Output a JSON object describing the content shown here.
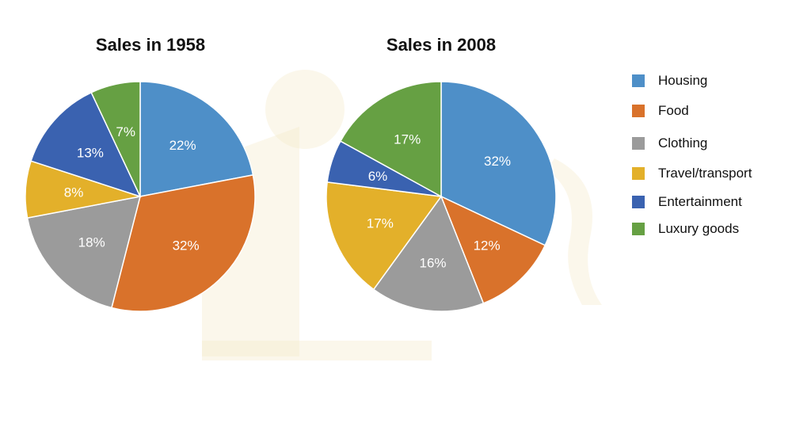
{
  "chart_data": [
    {
      "type": "pie",
      "title": "Sales in 1958",
      "categories": [
        "Housing",
        "Food",
        "Clothing",
        "Travel/transport",
        "Entertainment",
        "Luxury goods"
      ],
      "values": [
        22,
        32,
        18,
        8,
        13,
        7
      ],
      "labels": [
        "22%",
        "32%",
        "18%",
        "8%",
        "13%",
        "7%"
      ]
    },
    {
      "type": "pie",
      "title": "Sales in 2008",
      "categories": [
        "Housing",
        "Food",
        "Clothing",
        "Travel/transport",
        "Entertainment",
        "Luxury goods"
      ],
      "values": [
        32,
        12,
        16,
        17,
        6,
        17
      ],
      "labels": [
        "32%",
        "12%",
        "16%",
        "17%",
        "6%",
        "17%"
      ]
    }
  ],
  "legend": {
    "position": "right",
    "items": [
      {
        "label": "Housing",
        "color": "#4e8fc8"
      },
      {
        "label": "Food",
        "color": "#d9722b"
      },
      {
        "label": "Clothing",
        "color": "#9b9b9b"
      },
      {
        "label": "Travel/transport",
        "color": "#e3b02a"
      },
      {
        "label": "Entertainment",
        "color": "#3a62b0"
      },
      {
        "label": "Luxury goods",
        "color": "#66a043"
      }
    ]
  },
  "watermark": {
    "text": "IELTS",
    "color": "#f3e7c6"
  }
}
